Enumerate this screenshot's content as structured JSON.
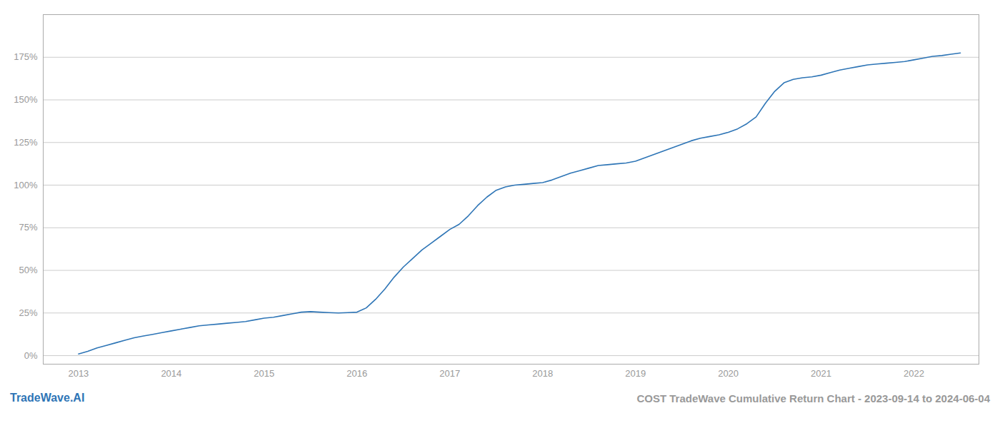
{
  "chart_data": {
    "type": "line",
    "title": "COST TradeWave Cumulative Return Chart - 2023-09-14 to 2024-06-04",
    "annotations": [
      "TradeWave.AI"
    ],
    "color": "#2E75B6",
    "grid": true,
    "x": [
      2013.0,
      2013.1,
      2013.2,
      2013.3,
      2013.4,
      2013.5,
      2013.6,
      2013.7,
      2013.8,
      2013.9,
      2014.0,
      2014.1,
      2014.2,
      2014.3,
      2014.4,
      2014.5,
      2014.6,
      2014.7,
      2014.8,
      2014.9,
      2015.0,
      2015.1,
      2015.2,
      2015.3,
      2015.4,
      2015.5,
      2015.6,
      2015.7,
      2015.8,
      2015.9,
      2016.0,
      2016.1,
      2016.2,
      2016.3,
      2016.4,
      2016.5,
      2016.6,
      2016.7,
      2016.8,
      2016.9,
      2017.0,
      2017.1,
      2017.2,
      2017.3,
      2017.4,
      2017.5,
      2017.6,
      2017.7,
      2017.8,
      2017.9,
      2018.0,
      2018.1,
      2018.2,
      2018.3,
      2018.4,
      2018.5,
      2018.6,
      2018.7,
      2018.8,
      2018.9,
      2019.0,
      2019.1,
      2019.2,
      2019.3,
      2019.4,
      2019.5,
      2019.6,
      2019.7,
      2019.8,
      2019.9,
      2020.0,
      2020.1,
      2020.2,
      2020.3,
      2020.4,
      2020.5,
      2020.6,
      2020.7,
      2020.8,
      2020.9,
      2021.0,
      2021.1,
      2021.2,
      2021.3,
      2021.4,
      2021.5,
      2021.6,
      2021.7,
      2021.8,
      2021.9,
      2022.0,
      2022.1,
      2022.2,
      2022.3,
      2022.4,
      2022.5
    ],
    "values": [
      1.0,
      2.5,
      4.5,
      6.0,
      7.5,
      9.0,
      10.5,
      11.5,
      12.5,
      13.5,
      14.5,
      15.5,
      16.5,
      17.5,
      18.0,
      18.5,
      19.0,
      19.5,
      20.0,
      21.0,
      22.0,
      22.5,
      23.5,
      24.5,
      25.5,
      25.8,
      25.5,
      25.2,
      25.0,
      25.2,
      25.5,
      28.0,
      33.0,
      39.0,
      46.0,
      52.0,
      57.0,
      62.0,
      66.0,
      70.0,
      74.0,
      77.0,
      82.0,
      88.0,
      93.0,
      97.0,
      99.0,
      100.0,
      100.5,
      101.0,
      101.5,
      103.0,
      105.0,
      107.0,
      108.5,
      110.0,
      111.5,
      112.0,
      112.5,
      113.0,
      114.0,
      116.0,
      118.0,
      120.0,
      122.0,
      124.0,
      126.0,
      127.5,
      128.5,
      129.5,
      131.0,
      133.0,
      136.0,
      140.0,
      148.0,
      155.0,
      160.0,
      162.0,
      163.0,
      163.5,
      164.5,
      166.0,
      167.5,
      168.5,
      169.5,
      170.5,
      171.0,
      171.5,
      172.0,
      172.5,
      173.5,
      174.5,
      175.5,
      176.0,
      176.8,
      177.5
    ],
    "xlim": [
      2012.62,
      2022.7
    ],
    "xticks": [
      2013,
      2014,
      2015,
      2016,
      2017,
      2018,
      2019,
      2020,
      2021,
      2022
    ],
    "ylim": [
      -5,
      200
    ],
    "yticks": [
      {
        "value": 0,
        "label": "0%"
      },
      {
        "value": 25,
        "label": "25%"
      },
      {
        "value": 50,
        "label": "50%"
      },
      {
        "value": 75,
        "label": "75%"
      },
      {
        "value": 100,
        "label": "100%"
      },
      {
        "value": 125,
        "label": "125%"
      },
      {
        "value": 150,
        "label": "150%"
      },
      {
        "value": 175,
        "label": "175%"
      }
    ]
  }
}
